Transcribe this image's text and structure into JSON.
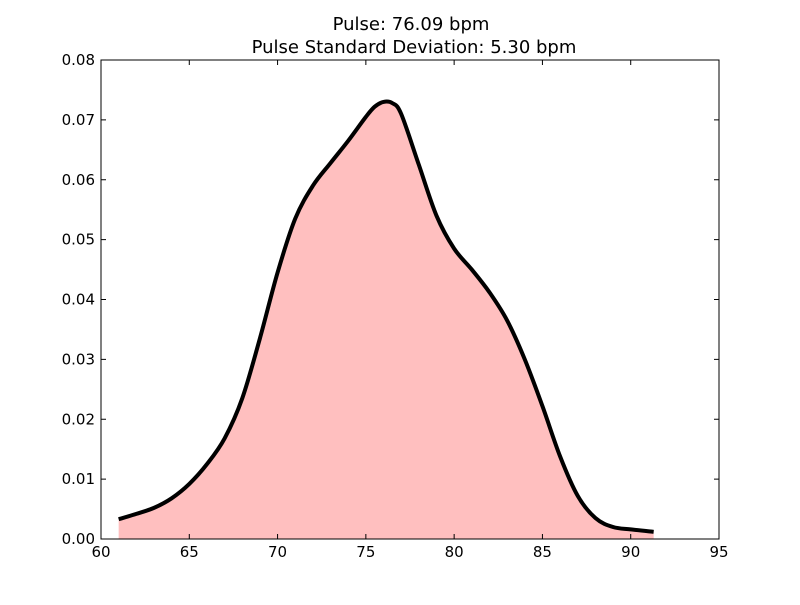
{
  "chart_data": {
    "type": "area",
    "title": "Pulse: 76.09 bpm",
    "subtitle": "Pulse Standard Deviation: 5.30 bpm",
    "xlabel": "",
    "ylabel": "",
    "xlim": [
      60,
      95
    ],
    "ylim": [
      0,
      0.08
    ],
    "xticks": [
      "60",
      "65",
      "70",
      "75",
      "80",
      "85",
      "90",
      "95"
    ],
    "yticks": [
      "0.00",
      "0.01",
      "0.02",
      "0.03",
      "0.04",
      "0.05",
      "0.06",
      "0.07",
      "0.08"
    ],
    "grid": false,
    "legend": "none",
    "colors": {
      "fill": "#ffbfbf",
      "line": "#000000",
      "axes": "#000000"
    },
    "series": [
      {
        "x": [
          61.0,
          62.0,
          63.0,
          64.0,
          65.0,
          66.0,
          67.0,
          68.0,
          69.0,
          70.0,
          71.0,
          72.0,
          73.0,
          74.0,
          75.0,
          75.5,
          76.0,
          76.5,
          77.0,
          78.0,
          79.0,
          80.0,
          81.0,
          82.0,
          83.0,
          84.0,
          85.0,
          86.0,
          87.0,
          88.0,
          89.0,
          90.0,
          91.3
        ],
        "y": [
          0.0033,
          0.0042,
          0.0052,
          0.0068,
          0.0092,
          0.0125,
          0.0168,
          0.0235,
          0.0335,
          0.0445,
          0.0535,
          0.059,
          0.0628,
          0.0665,
          0.0705,
          0.0722,
          0.073,
          0.0728,
          0.071,
          0.0625,
          0.054,
          0.0485,
          0.045,
          0.0412,
          0.0365,
          0.03,
          0.0222,
          0.0138,
          0.0072,
          0.0035,
          0.002,
          0.0016,
          0.0012
        ]
      }
    ]
  }
}
